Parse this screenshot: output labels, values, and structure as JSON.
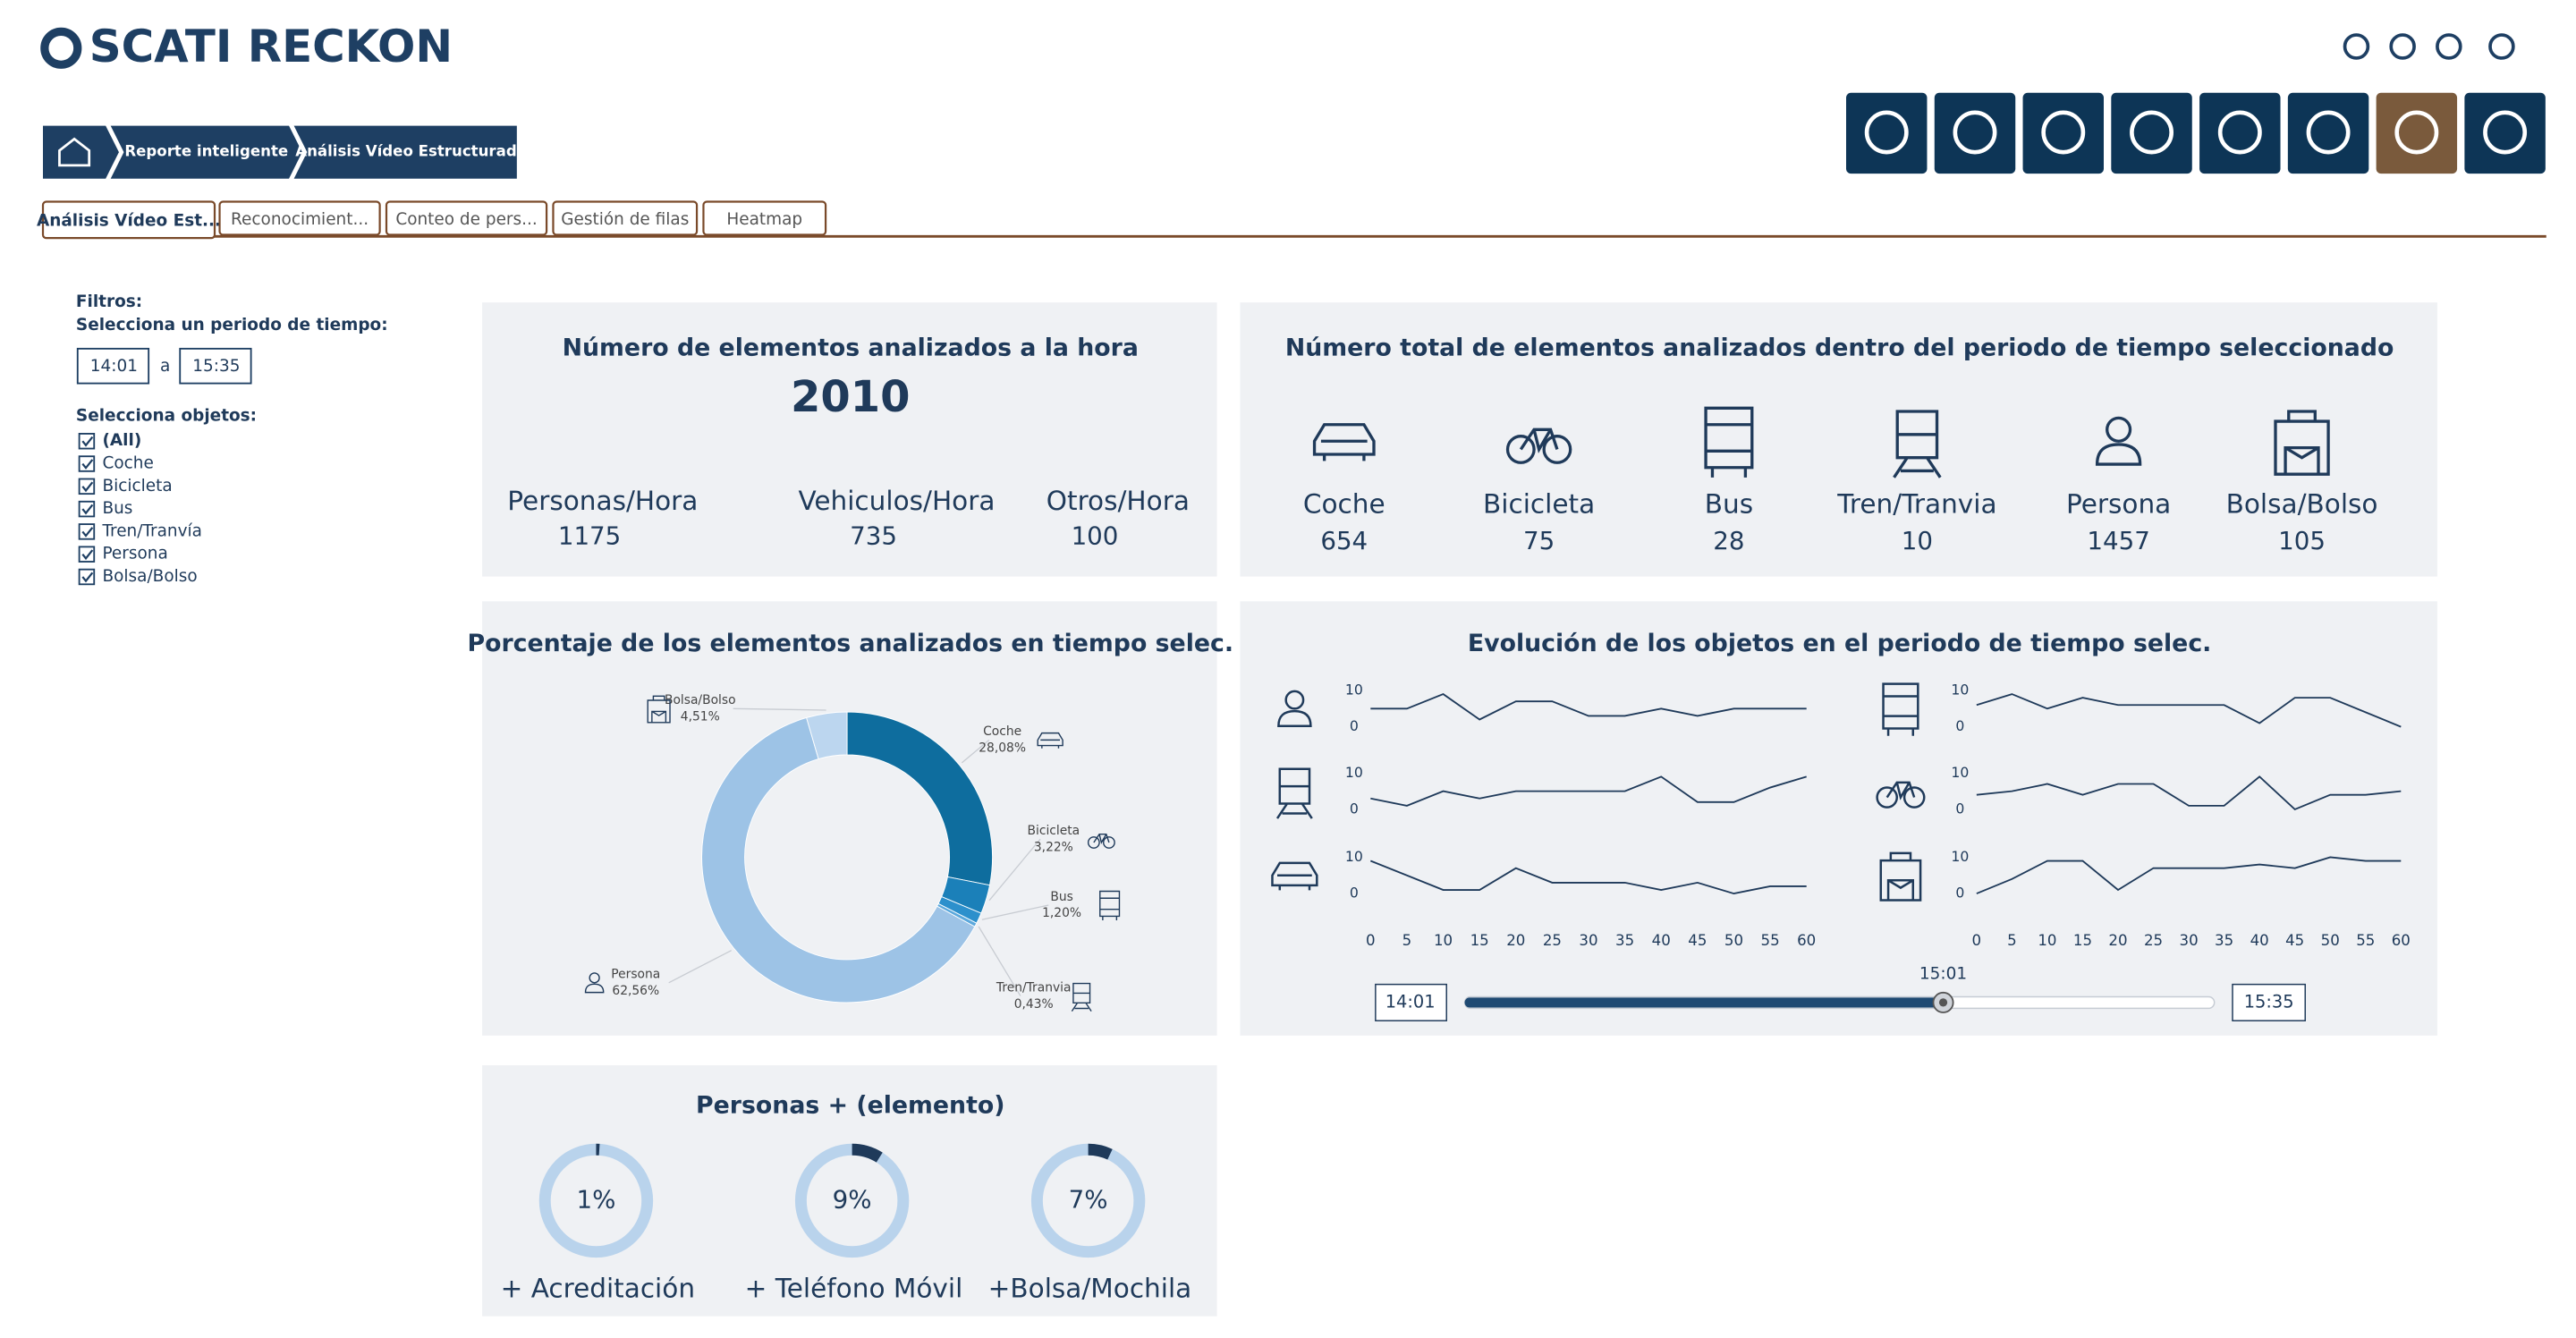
{
  "header": {
    "logo": "SCATI RECKON"
  },
  "breadcrumb": [
    "Reporte inteligente",
    "Análisis Vídeo Estructurado"
  ],
  "tabs": [
    "Análisis Vídeo Est...",
    "Reconocimient...",
    "Conteo de pers...",
    "Gestión de filas",
    "Heatmap"
  ],
  "filters": {
    "title": "Filtros:",
    "period_label": "Selecciona un periodo de tiempo:",
    "from": "14:01",
    "separator": "a",
    "to": "15:35",
    "objects_label": "Selecciona objetos:",
    "objects": [
      "(All)",
      "Coche",
      "Bicicleta",
      "Bus",
      "Tren/Tranvía",
      "Persona",
      "Bolsa/Bolso"
    ]
  },
  "hourly": {
    "title": "Número de elementos analizados a la hora",
    "total": 2010,
    "items": [
      {
        "label": "Personas/Hora",
        "value": 1175
      },
      {
        "label": "Vehiculos/Hora",
        "value": 735
      },
      {
        "label": "Otros/Hora",
        "value": 100
      }
    ]
  },
  "totals": {
    "title": "Número total de elementos analizados dentro del periodo de tiempo seleccionado",
    "items": [
      {
        "label": "Coche",
        "value": 654
      },
      {
        "label": "Bicicleta",
        "value": 75
      },
      {
        "label": "Bus",
        "value": 28
      },
      {
        "label": "Tren/Tranvia",
        "value": 10
      },
      {
        "label": "Persona",
        "value": 1457
      },
      {
        "label": "Bolsa/Bolso",
        "value": 105
      }
    ]
  },
  "donut": {
    "type": "pie",
    "title": "Porcentaje de los elementos analizados en tiempo selec.",
    "categories": [
      "Coche",
      "Bicicleta",
      "Bus",
      "Tren/Tranvia",
      "Persona",
      "Bolsa/Bolso"
    ],
    "values": [
      28.08,
      3.22,
      1.2,
      0.43,
      62.56,
      4.51
    ],
    "value_labels": [
      "28,08%",
      "3,22%",
      "1,20%",
      "0,43%",
      "62,56%",
      "4,51%"
    ],
    "colors": [
      "#0e6d9e",
      "#1b80b9",
      "#2c90cc",
      "#5ba8dc",
      "#9dc3e6",
      "#bcd6ef"
    ]
  },
  "evolution": {
    "type": "line",
    "title": "Evolución de los objetos en el periodo de tiempo selec.",
    "x": [
      0,
      5,
      10,
      15,
      20,
      25,
      30,
      35,
      40,
      45,
      50,
      55,
      60
    ],
    "xticks": [
      0,
      5,
      10,
      15,
      20,
      25,
      30,
      35,
      40,
      45,
      50,
      55,
      60
    ],
    "ylim": [
      0,
      10
    ],
    "yticks": [
      0,
      10
    ],
    "color": "#1f3a5a",
    "series": [
      {
        "values": [
          5,
          5,
          9,
          2,
          7,
          7,
          3,
          3,
          5,
          3,
          5,
          5,
          5
        ]
      },
      {
        "values": [
          3,
          1,
          5,
          3,
          5,
          5,
          5,
          5,
          9,
          2,
          2,
          6,
          9
        ]
      },
      {
        "values": [
          9,
          5,
          1,
          1,
          7,
          3,
          3,
          3,
          1,
          3,
          0,
          2,
          2
        ]
      },
      {
        "values": [
          6,
          9,
          5,
          8,
          6,
          6,
          6,
          6,
          1,
          8,
          8,
          4,
          0
        ]
      },
      {
        "values": [
          4,
          5,
          7,
          4,
          7,
          7,
          1,
          1,
          9,
          0,
          4,
          4,
          5
        ]
      },
      {
        "values": [
          0,
          4,
          9,
          9,
          1,
          7,
          7,
          7,
          8,
          7,
          10,
          9,
          9
        ]
      }
    ],
    "slider": {
      "start": "14:01",
      "current": "15:01",
      "end": "15:35"
    }
  },
  "persons": {
    "title": "Personas + (elemento)",
    "items": [
      {
        "label": "+ Acreditación",
        "value": 1,
        "value_label": "1%"
      },
      {
        "label": "+ Teléfono Móvil",
        "value": 9,
        "value_label": "9%"
      },
      {
        "label": "+Bolsa/Mochila",
        "value": 7,
        "value_label": "7%"
      }
    ]
  }
}
